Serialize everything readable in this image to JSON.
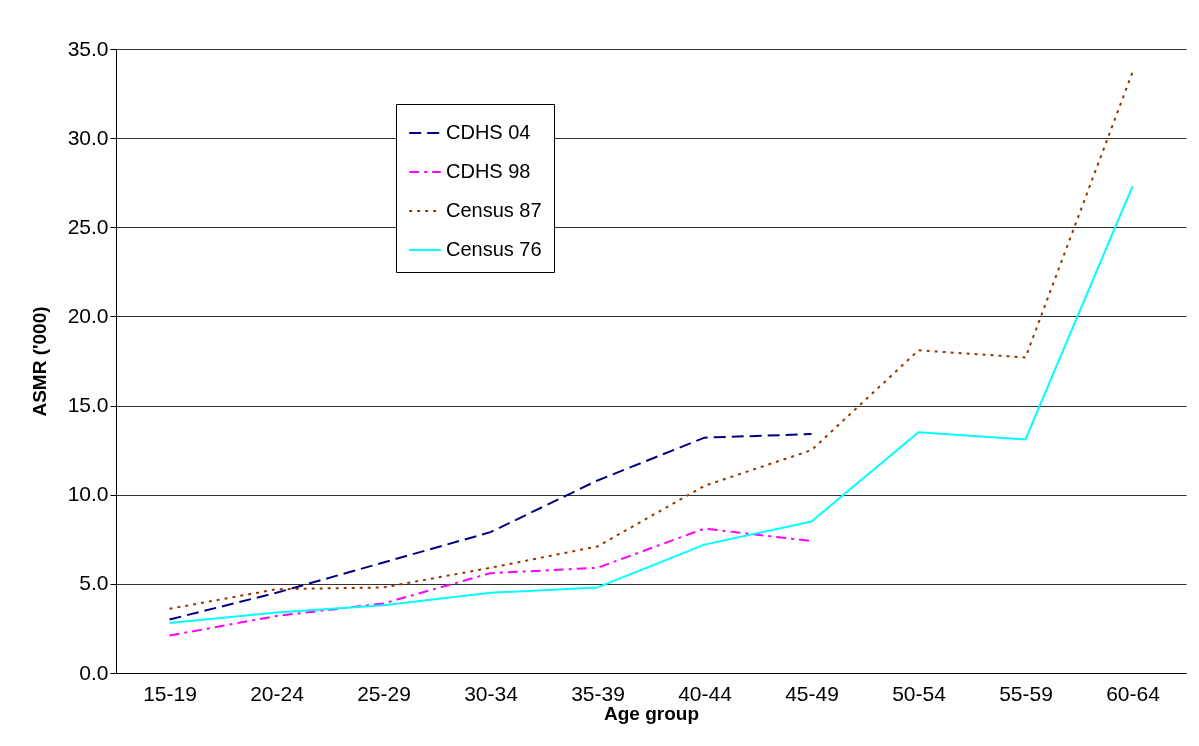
{
  "chart_data": {
    "type": "line",
    "xlabel": "Age group",
    "ylabel": "ASMR ('000)",
    "categories": [
      "15-19",
      "20-24",
      "25-29",
      "30-34",
      "35-39",
      "40-44",
      "45-49",
      "50-54",
      "55-59",
      "60-64"
    ],
    "series": [
      {
        "name": "CDHS 04",
        "color": "#000080",
        "line_style": "dashed",
        "values": [
          3.0,
          4.5,
          6.2,
          7.9,
          10.8,
          13.2,
          13.4,
          null,
          null,
          null
        ]
      },
      {
        "name": "CDHS 98",
        "color": "#ff00ff",
        "line_style": "dashdot",
        "values": [
          2.1,
          3.2,
          3.9,
          5.6,
          5.9,
          8.1,
          7.4,
          null,
          null,
          null
        ]
      },
      {
        "name": "Census 87",
        "color": "#993300",
        "line_style": "dotted",
        "values": [
          3.6,
          4.7,
          4.8,
          5.9,
          7.1,
          10.5,
          12.5,
          18.1,
          17.7,
          33.7
        ]
      },
      {
        "name": "Census 76",
        "color": "#00ffff",
        "line_style": "solid",
        "values": [
          2.8,
          3.4,
          3.8,
          4.5,
          4.8,
          7.2,
          8.5,
          13.5,
          13.1,
          27.3
        ]
      }
    ],
    "ylim": [
      0,
      35
    ],
    "yticks": [
      {
        "value": 0,
        "label": "0.0"
      },
      {
        "value": 5,
        "label": "5.0"
      },
      {
        "value": 10,
        "label": "10.0"
      },
      {
        "value": 15,
        "label": "15.0"
      },
      {
        "value": 20,
        "label": "20.0"
      },
      {
        "value": 25,
        "label": "25.0"
      },
      {
        "value": 30,
        "label": "30.0"
      },
      {
        "value": 35,
        "label": "35.0"
      }
    ],
    "grid": "y",
    "legend": "top left",
    "marker": "none"
  }
}
